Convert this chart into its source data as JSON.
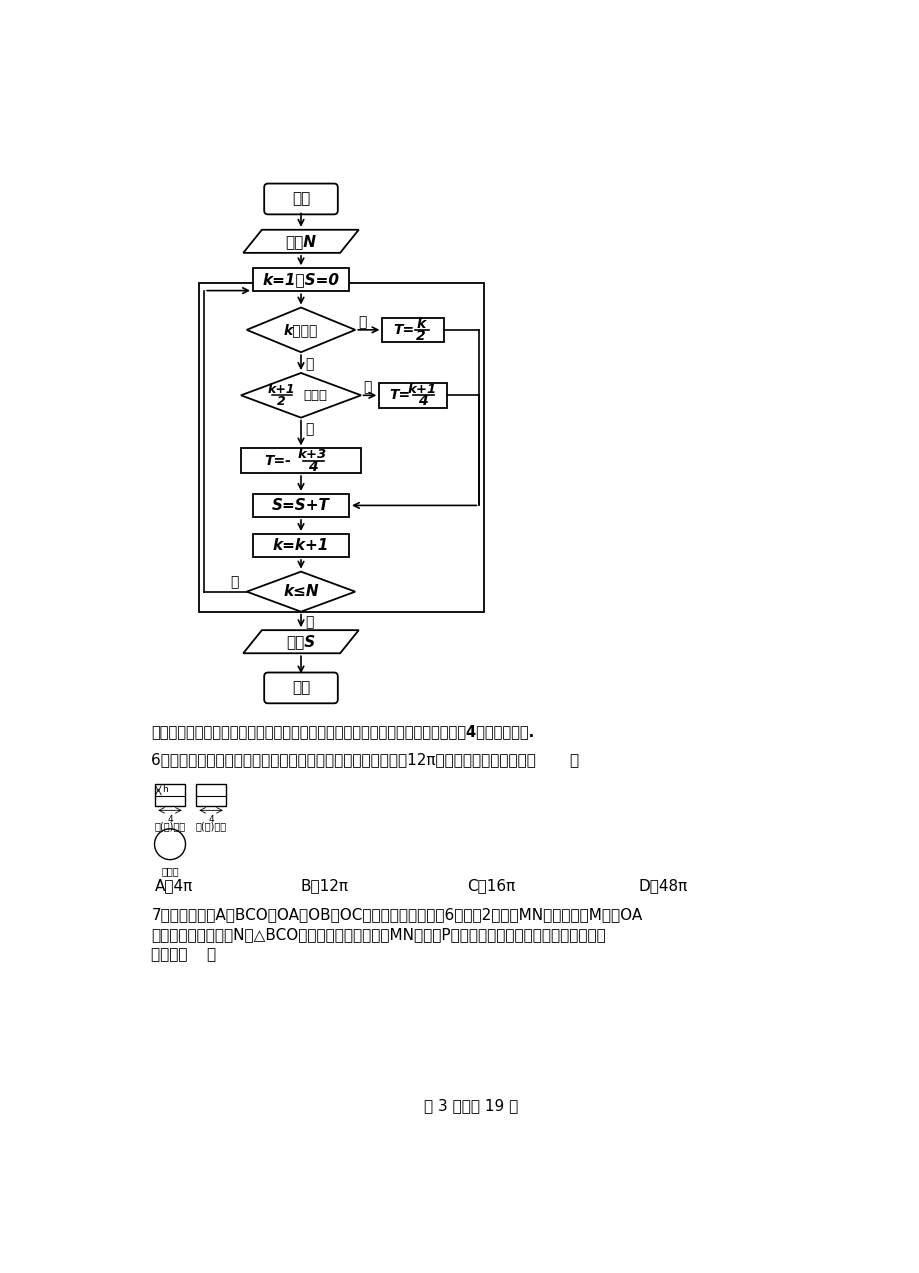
{
  "bg_color": "#ffffff",
  "page_width": 9.2,
  "page_height": 12.73,
  "flowchart": {
    "start_label": "开始",
    "input_label": "输入N",
    "init_label": "k=1，S=0",
    "dec1_label": "k是偶数",
    "dec2_line1": "k+1",
    "dec2_line2": "2",
    "dec2_line3": "是偶数",
    "t3_line1": "k+3",
    "t3_line2": "4",
    "s_label": "S=S+T",
    "k_label": "k=k+1",
    "dec3_label": "k≤N",
    "output_label": "输出S",
    "end_label": "结束",
    "yes": "是",
    "no": "否"
  },
  "comment_text": "「命题意图」本题考查阅读程序框图，理解程序框图的功能，本质是把正整数除以4后按余数分类.",
  "q6_text": "6．一个几何体的三视图如图所示，如果该几何体的侧面面积为12π，则该几何体的体积是（       ）",
  "q6_opt_a": "A．4π",
  "q6_opt_b": "B．12π",
  "q6_opt_c": "C．16π",
  "q6_opt_d": "D．48π",
  "q7_line1": "7．已知三棱锥A－BCO，OA、OB、OC两两垂直且长度均为6，长为2的线段MN的一个端点M在棱OA",
  "q7_line2": "上运动，另一个端点N在△BCO内运动（含边界），则MN的中点P的轨迹与三棱锥的面所围成的几何体的",
  "q7_line3": "体积为（    ）",
  "footer": "第 3 页，共 19 页",
  "front_view_label": "主(正)视图",
  "side_view_label": "左(傈)视图",
  "top_view_label": "俦视图"
}
